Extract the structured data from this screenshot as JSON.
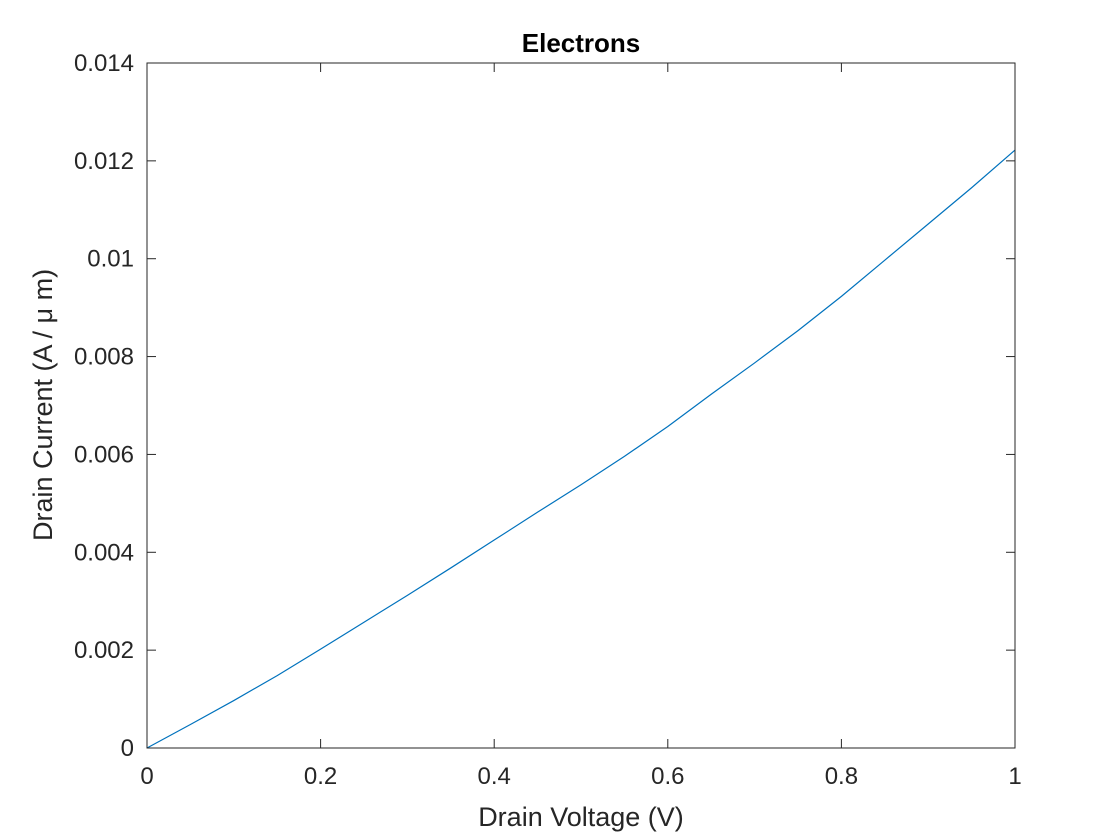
{
  "chart_data": {
    "type": "line",
    "title": "Electrons",
    "xlabel": "Drain Voltage (V)",
    "ylabel": "Drain Current (A / μ m)",
    "xlim": [
      0,
      1
    ],
    "ylim": [
      0,
      0.014
    ],
    "xticks": [
      0,
      0.2,
      0.4,
      0.6,
      0.8,
      1
    ],
    "xtick_labels": [
      "0",
      "0.2",
      "0.4",
      "0.6",
      "0.8",
      "1"
    ],
    "yticks": [
      0,
      0.002,
      0.004,
      0.006,
      0.008,
      0.01,
      0.012,
      0.014
    ],
    "ytick_labels": [
      "0",
      "0.002",
      "0.004",
      "0.006",
      "0.008",
      "0.01",
      "0.012",
      "0.014"
    ],
    "grid": false,
    "box": true,
    "series": [
      {
        "color": "#0072BD",
        "x": [
          0,
          0.05,
          0.1,
          0.15,
          0.2,
          0.25,
          0.3,
          0.35,
          0.4,
          0.45,
          0.5,
          0.55,
          0.6,
          0.65,
          0.7,
          0.75,
          0.8,
          0.85,
          0.9,
          0.95,
          1.0
        ],
        "y": [
          0,
          0.00048,
          0.00097,
          0.00148,
          0.00202,
          0.00257,
          0.00312,
          0.00368,
          0.00425,
          0.00482,
          0.00538,
          0.00596,
          0.00657,
          0.00723,
          0.00787,
          0.00853,
          0.00923,
          0.00997,
          0.01071,
          0.01145,
          0.01222
        ]
      }
    ]
  }
}
